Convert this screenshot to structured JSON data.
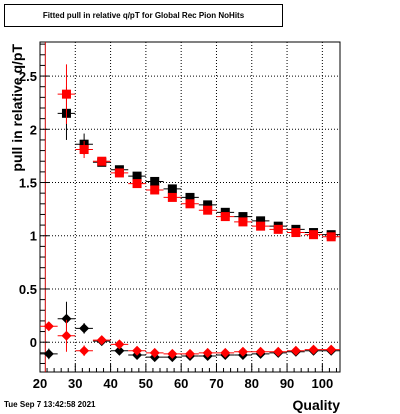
{
  "chart_data": {
    "type": "scatter",
    "title": "Fitted pull in relative q/pT for Global Rec Pion NoHits",
    "xlabel": "Quality",
    "ylabel": "pull in relative q/pT",
    "xlim": [
      20,
      105
    ],
    "ylim": [
      -0.28,
      2.82
    ],
    "x_ticks": [
      20,
      30,
      40,
      50,
      60,
      70,
      80,
      90,
      100
    ],
    "y_ticks": [
      0,
      0.5,
      1,
      1.5,
      2,
      2.5
    ],
    "y_tick_labels": [
      "0",
      "0.5",
      "1",
      "1.5",
      "2",
      "2.5"
    ],
    "grid": true,
    "reference_line_x": 21.5,
    "series": [
      {
        "color": "#000000",
        "marker": "square",
        "x": [
          27.5,
          32.5,
          37.5,
          42.5,
          47.5,
          52.5,
          57.5,
          62.5,
          67.5,
          72.5,
          77.5,
          82.5,
          87.5,
          92.5,
          97.5,
          102.5
        ],
        "y": [
          2.15,
          1.86,
          1.69,
          1.62,
          1.56,
          1.51,
          1.44,
          1.36,
          1.29,
          1.22,
          1.18,
          1.14,
          1.09,
          1.06,
          1.03,
          1.01
        ],
        "err": [
          0.25,
          0.1,
          0.03,
          0.02,
          0.02,
          0.02,
          0.02,
          0.02,
          0.02,
          0.02,
          0.02,
          0.02,
          0.02,
          0.02,
          0.02,
          0.02
        ]
      },
      {
        "color": "#ff0000",
        "marker": "square",
        "x": [
          27.5,
          32.5,
          37.5,
          42.5,
          47.5,
          52.5,
          57.5,
          62.5,
          67.5,
          72.5,
          77.5,
          82.5,
          87.5,
          92.5,
          97.5,
          102.5
        ],
        "y": [
          2.33,
          1.81,
          1.7,
          1.59,
          1.49,
          1.43,
          1.36,
          1.3,
          1.24,
          1.18,
          1.13,
          1.09,
          1.06,
          1.03,
          1.01,
          0.99
        ],
        "err": [
          0.28,
          0.08,
          0.03,
          0.02,
          0.02,
          0.02,
          0.02,
          0.02,
          0.02,
          0.02,
          0.02,
          0.02,
          0.02,
          0.02,
          0.02,
          0.02
        ]
      },
      {
        "color": "#000000",
        "marker": "diamond",
        "x": [
          22.5,
          27.5,
          32.5,
          37.5,
          42.5,
          47.5,
          52.5,
          57.5,
          62.5,
          67.5,
          72.5,
          77.5,
          82.5,
          87.5,
          92.5,
          97.5,
          102.5
        ],
        "y": [
          -0.11,
          0.22,
          0.13,
          0.01,
          -0.08,
          -0.12,
          -0.14,
          -0.14,
          -0.13,
          -0.13,
          -0.12,
          -0.12,
          -0.11,
          -0.1,
          -0.09,
          -0.08,
          -0.08
        ],
        "err": [
          0.05,
          0.16,
          0.05,
          0.02,
          0.01,
          0.01,
          0.01,
          0.01,
          0.01,
          0.01,
          0.01,
          0.01,
          0.01,
          0.01,
          0.01,
          0.01,
          0.01
        ]
      },
      {
        "color": "#ff0000",
        "marker": "diamond",
        "x": [
          22.5,
          27.5,
          32.5,
          37.5,
          42.5,
          47.5,
          52.5,
          57.5,
          62.5,
          67.5,
          72.5,
          77.5,
          82.5,
          87.5,
          92.5,
          97.5,
          102.5
        ],
        "y": [
          0.15,
          0.06,
          -0.08,
          0.02,
          -0.02,
          -0.08,
          -0.1,
          -0.11,
          -0.11,
          -0.1,
          -0.1,
          -0.09,
          -0.09,
          -0.09,
          -0.08,
          -0.07,
          -0.07
        ],
        "err": [
          0.04,
          0.15,
          0.05,
          0.02,
          0.01,
          0.01,
          0.01,
          0.01,
          0.01,
          0.01,
          0.01,
          0.01,
          0.01,
          0.01,
          0.01,
          0.01,
          0.01
        ]
      }
    ]
  },
  "footer": {
    "timestamp": "Tue Sep  7 13:42:58 2021"
  }
}
